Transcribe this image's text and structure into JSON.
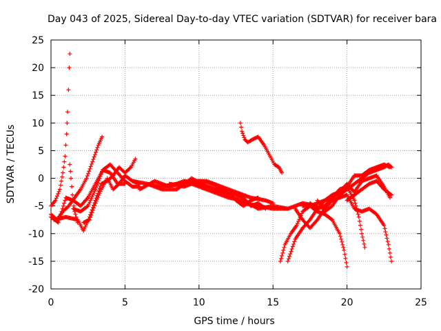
{
  "chart_data": {
    "type": "scatter",
    "title": "Day 043 of 2025, Sidereal Day-to-day VTEC variation (SDTVAR) for receiver bara",
    "xlabel": "GPS time / hours",
    "ylabel": "SDTVAR / TECUs",
    "xlim": [
      0,
      25
    ],
    "ylim": [
      -20,
      25
    ],
    "xticks": [
      "0",
      "5",
      "10",
      "15",
      "20",
      "25"
    ],
    "yticks": [
      "-20",
      "-15",
      "-10",
      "-5",
      "0",
      "5",
      "10",
      "15",
      "20",
      "25"
    ],
    "grid": true,
    "marker": "+",
    "color": "#ff0000",
    "series": [
      {
        "name": "trace-spike",
        "points": [
          [
            0.0,
            -5
          ],
          [
            0.3,
            -4
          ],
          [
            0.6,
            -2
          ],
          [
            0.8,
            1
          ],
          [
            0.95,
            4
          ],
          [
            1.05,
            8
          ],
          [
            1.12,
            12
          ],
          [
            1.18,
            16
          ],
          [
            1.23,
            20
          ],
          [
            1.27,
            22.5
          ]
        ]
      },
      {
        "name": "trace-spike-fall",
        "points": [
          [
            1.27,
            2.5
          ],
          [
            1.35,
            0
          ],
          [
            1.45,
            -3
          ],
          [
            1.6,
            -6
          ],
          [
            1.8,
            -8
          ]
        ]
      },
      {
        "name": "trace-early-1",
        "points": [
          [
            0.0,
            -6.5
          ],
          [
            0.4,
            -7.5
          ],
          [
            0.8,
            -6
          ],
          [
            1.2,
            -5
          ],
          [
            1.6,
            -3.5
          ],
          [
            2.0,
            -2
          ],
          [
            2.4,
            0
          ],
          [
            2.8,
            3
          ],
          [
            3.2,
            6
          ],
          [
            3.45,
            7.5
          ]
        ]
      },
      {
        "name": "trace-early-2",
        "points": [
          [
            0.0,
            -7
          ],
          [
            0.5,
            -8
          ],
          [
            1.0,
            -3.5
          ],
          [
            1.5,
            -4
          ],
          [
            2.0,
            -5
          ],
          [
            2.5,
            -3.5
          ],
          [
            3.0,
            -1
          ],
          [
            3.5,
            1.5
          ],
          [
            4.0,
            1
          ],
          [
            4.5,
            -1
          ],
          [
            5.0,
            -1
          ]
        ]
      },
      {
        "name": "trace-early-3",
        "points": [
          [
            0.2,
            -7.5
          ],
          [
            1.0,
            -7
          ],
          [
            1.8,
            -7.5
          ],
          [
            2.2,
            -9.5
          ],
          [
            2.6,
            -7
          ],
          [
            3.0,
            -4
          ],
          [
            3.4,
            -1
          ],
          [
            3.8,
            -0.5
          ],
          [
            4.2,
            0.5
          ],
          [
            4.6,
            2
          ],
          [
            5.0,
            1
          ],
          [
            5.4,
            2
          ],
          [
            5.7,
            3.5
          ]
        ]
      },
      {
        "name": "trace-early-4",
        "points": [
          [
            1.5,
            -5.5
          ],
          [
            2.0,
            -6
          ],
          [
            2.5,
            -5
          ],
          [
            3.0,
            -2
          ],
          [
            3.5,
            1.5
          ],
          [
            4.0,
            2.5
          ],
          [
            4.5,
            1
          ],
          [
            5.0,
            -0.5
          ],
          [
            5.5,
            -1.5
          ],
          [
            6.0,
            -1.5
          ]
        ]
      },
      {
        "name": "trace-early-5",
        "points": [
          [
            2.2,
            -8
          ],
          [
            2.6,
            -7.5
          ],
          [
            3.0,
            -4.5
          ],
          [
            3.4,
            -2
          ],
          [
            3.8,
            0
          ],
          [
            4.2,
            -2
          ],
          [
            4.6,
            -1
          ],
          [
            5.0,
            0.5
          ],
          [
            5.5,
            -0.5
          ],
          [
            6.0,
            -1
          ]
        ]
      },
      {
        "name": "trace-mid-1",
        "points": [
          [
            5.5,
            -0.5
          ],
          [
            6.5,
            -1
          ],
          [
            7.5,
            -1.5
          ],
          [
            8.5,
            -1
          ],
          [
            9.5,
            -0.5
          ],
          [
            10.5,
            -0.5
          ],
          [
            11.5,
            -1.5
          ],
          [
            12.5,
            -2.5
          ],
          [
            13.5,
            -3.5
          ],
          [
            14.5,
            -4
          ],
          [
            15.0,
            -4.5
          ]
        ]
      },
      {
        "name": "trace-mid-2",
        "points": [
          [
            6.0,
            -2
          ],
          [
            7.0,
            -0.5
          ],
          [
            8.0,
            -1.5
          ],
          [
            9.0,
            -0.5
          ],
          [
            10.0,
            -1
          ],
          [
            11.0,
            -2
          ],
          [
            12.0,
            -3
          ],
          [
            13.0,
            -4.5
          ],
          [
            14.0,
            -5
          ],
          [
            15.0,
            -5.5
          ],
          [
            16.0,
            -5.5
          ]
        ]
      },
      {
        "name": "trace-mid-3",
        "points": [
          [
            6.5,
            -1
          ],
          [
            7.5,
            -2
          ],
          [
            8.5,
            -2
          ],
          [
            9.5,
            0
          ],
          [
            10.5,
            -1.5
          ],
          [
            11.5,
            -2
          ],
          [
            12.5,
            -3
          ],
          [
            13.0,
            -3.5
          ],
          [
            13.5,
            -5
          ],
          [
            14.0,
            -4.5
          ],
          [
            14.5,
            -5.5
          ]
        ]
      },
      {
        "name": "trace-mid-4",
        "points": [
          [
            8.0,
            -1
          ],
          [
            9.0,
            -1.5
          ],
          [
            10.0,
            -0.5
          ],
          [
            11.0,
            -1
          ],
          [
            12.0,
            -2.5
          ],
          [
            12.5,
            -4
          ],
          [
            13.0,
            -5
          ],
          [
            13.5,
            -4
          ],
          [
            14.0,
            -3.5
          ]
        ]
      },
      {
        "name": "trace-mid-5",
        "points": [
          [
            9.0,
            -0.5
          ],
          [
            10.0,
            -1.5
          ],
          [
            11.0,
            -2.5
          ],
          [
            12.0,
            -3.5
          ],
          [
            13.0,
            -4
          ],
          [
            14.0,
            -5.5
          ],
          [
            15.0,
            -5
          ],
          [
            16.0,
            -5.5
          ],
          [
            17.0,
            -4.5
          ],
          [
            18.0,
            -5
          ]
        ]
      },
      {
        "name": "trace-isolated",
        "points": [
          [
            12.8,
            10
          ],
          [
            12.9,
            8.5
          ],
          [
            13.1,
            7
          ],
          [
            13.3,
            6.5
          ],
          [
            13.6,
            7
          ],
          [
            14.0,
            7.5
          ],
          [
            14.4,
            6
          ],
          [
            14.8,
            4
          ],
          [
            15.1,
            2.5
          ],
          [
            15.4,
            2
          ],
          [
            15.6,
            1
          ]
        ]
      },
      {
        "name": "trace-late-1",
        "points": [
          [
            15.5,
            -15
          ],
          [
            15.8,
            -12
          ],
          [
            16.2,
            -10
          ],
          [
            16.6,
            -8.5
          ],
          [
            17.0,
            -6
          ],
          [
            17.5,
            -5
          ],
          [
            18.0,
            -4.5
          ],
          [
            18.5,
            -4
          ],
          [
            19.0,
            -3.5
          ],
          [
            19.5,
            -2.5
          ],
          [
            20.0,
            -1.5
          ],
          [
            20.5,
            0.5
          ],
          [
            21.0,
            0.5
          ],
          [
            21.5,
            1.5
          ],
          [
            22.0,
            2
          ],
          [
            22.5,
            2.5
          ],
          [
            22.9,
            2
          ]
        ]
      },
      {
        "name": "trace-late-2",
        "points": [
          [
            16.0,
            -15
          ],
          [
            16.5,
            -11
          ],
          [
            17.0,
            -9
          ],
          [
            17.5,
            -7.5
          ],
          [
            18.0,
            -5.5
          ],
          [
            18.5,
            -4
          ],
          [
            19.0,
            -3
          ],
          [
            19.5,
            -2.5
          ],
          [
            20.0,
            -1
          ],
          [
            20.5,
            -2.5
          ],
          [
            21.0,
            -0.5
          ],
          [
            21.5,
            0
          ],
          [
            22.0,
            0.5
          ],
          [
            22.5,
            -1.5
          ],
          [
            22.9,
            -3.5
          ]
        ]
      },
      {
        "name": "trace-late-3",
        "points": [
          [
            16.5,
            -5.5
          ],
          [
            17.0,
            -7.5
          ],
          [
            17.5,
            -9
          ],
          [
            18.0,
            -7.5
          ],
          [
            18.5,
            -5.5
          ],
          [
            19.0,
            -4
          ],
          [
            19.5,
            -3.5
          ],
          [
            20.0,
            -3
          ],
          [
            20.5,
            -5.5
          ],
          [
            21.0,
            -6
          ],
          [
            21.5,
            -5.5
          ],
          [
            22.0,
            -6.5
          ],
          [
            22.5,
            -8.5
          ],
          [
            22.8,
            -12
          ],
          [
            23.0,
            -15
          ]
        ]
      },
      {
        "name": "trace-late-4",
        "points": [
          [
            17.0,
            -5
          ],
          [
            17.5,
            -5
          ],
          [
            18.0,
            -6
          ],
          [
            18.5,
            -6.5
          ],
          [
            19.0,
            -7.5
          ],
          [
            19.5,
            -10
          ],
          [
            19.8,
            -13
          ],
          [
            20.0,
            -16
          ]
        ]
      },
      {
        "name": "trace-late-5",
        "points": [
          [
            17.5,
            -4.5
          ],
          [
            18.0,
            -5.5
          ],
          [
            18.5,
            -5
          ],
          [
            19.0,
            -3.5
          ],
          [
            19.5,
            -2
          ],
          [
            20.0,
            -1.5
          ],
          [
            20.5,
            -4
          ],
          [
            20.8,
            -7
          ],
          [
            21.0,
            -10
          ],
          [
            21.2,
            -12.5
          ]
        ]
      },
      {
        "name": "trace-late-6",
        "points": [
          [
            18.0,
            -4
          ],
          [
            18.5,
            -6
          ],
          [
            19.0,
            -5
          ],
          [
            19.5,
            -3
          ],
          [
            20.0,
            -2
          ],
          [
            20.5,
            -1
          ],
          [
            21.0,
            0
          ],
          [
            21.5,
            1
          ],
          [
            22.0,
            1.5
          ],
          [
            22.5,
            2
          ],
          [
            22.8,
            2.5
          ],
          [
            23.0,
            2
          ]
        ]
      },
      {
        "name": "trace-late-7",
        "points": [
          [
            20.0,
            -4
          ],
          [
            20.5,
            -3
          ],
          [
            21.0,
            -2
          ],
          [
            21.5,
            -1
          ],
          [
            22.0,
            -0.5
          ],
          [
            22.5,
            -2
          ],
          [
            23.0,
            -3
          ]
        ]
      }
    ]
  }
}
